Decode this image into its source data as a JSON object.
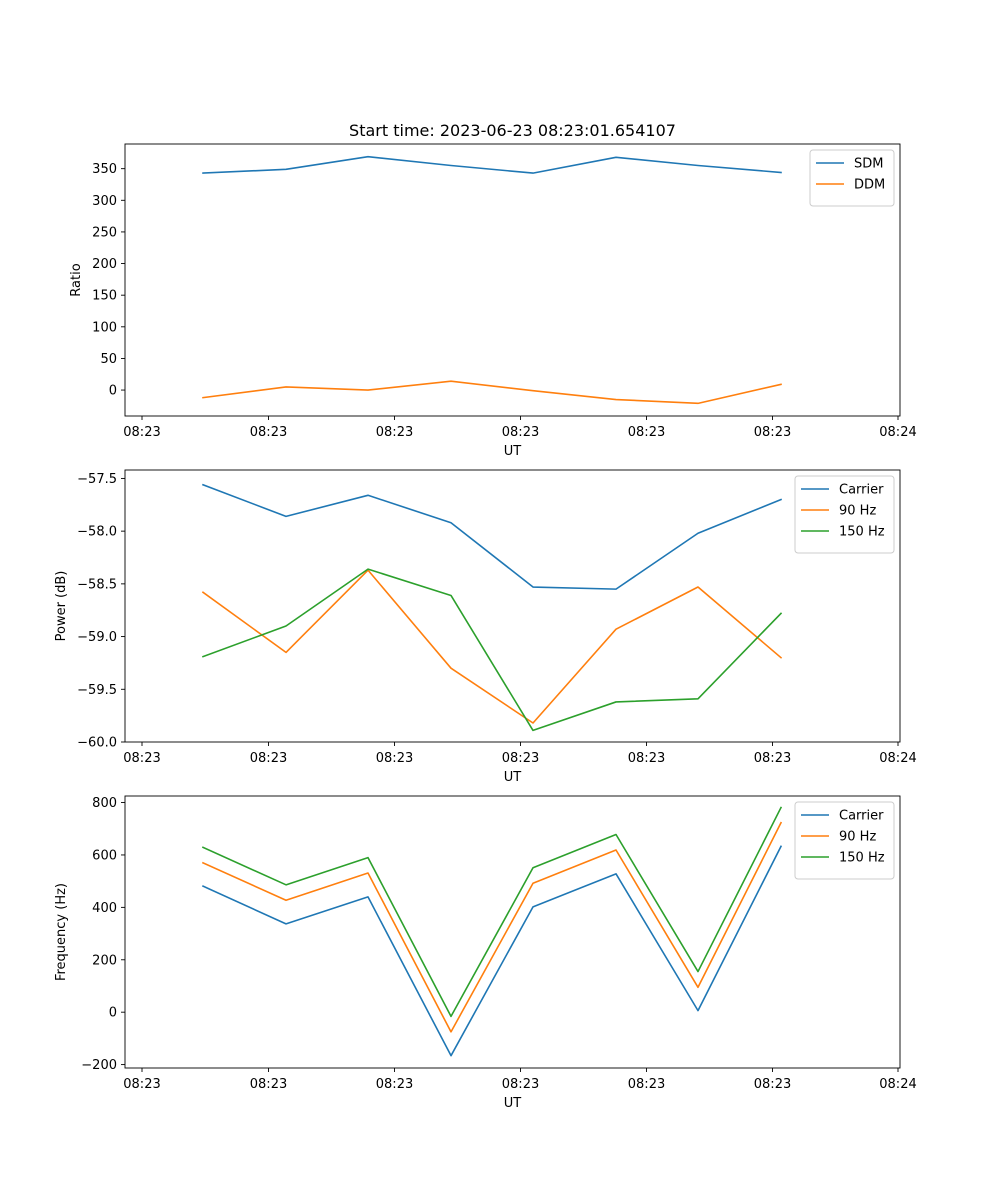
{
  "title": "Start time: 2023-06-23 08:23:01.654107",
  "chart_data": [
    {
      "type": "line",
      "xlabel": "UT",
      "ylabel": "Ratio",
      "x_tick_labels": [
        "08:23",
        "08:23",
        "08:23",
        "08:23",
        "08:23",
        "08:23",
        "08:24"
      ],
      "y_ticks": [
        0,
        50,
        100,
        150,
        200,
        250,
        300,
        350
      ],
      "ylim": [
        -41,
        389
      ],
      "legend_position": "upper-right",
      "series": [
        {
          "name": "SDM",
          "color": "#1f77b4",
          "values": [
            343,
            349,
            369,
            355,
            343,
            368,
            355,
            344
          ]
        },
        {
          "name": "DDM",
          "color": "#ff7f0e",
          "values": [
            -12,
            5,
            0,
            14,
            -1,
            -15,
            -21,
            9
          ]
        }
      ]
    },
    {
      "type": "line",
      "xlabel": "UT",
      "ylabel": "Power (dB)",
      "x_tick_labels": [
        "08:23",
        "08:23",
        "08:23",
        "08:23",
        "08:23",
        "08:23",
        "08:24"
      ],
      "y_ticks": [
        -60.0,
        -59.5,
        -59.0,
        -58.5,
        -58.0,
        -57.5
      ],
      "y_tick_labels": [
        "−60.0",
        "−59.5",
        "−59.0",
        "−58.5",
        "−58.0",
        "−57.5"
      ],
      "ylim": [
        -60.0,
        -57.42
      ],
      "legend_position": "upper-right",
      "series": [
        {
          "name": "Carrier",
          "color": "#1f77b4",
          "values": [
            -57.56,
            -57.86,
            -57.66,
            -57.92,
            -58.53,
            -58.55,
            -58.02,
            -57.7
          ]
        },
        {
          "name": "90 Hz",
          "color": "#ff7f0e",
          "values": [
            -58.58,
            -59.15,
            -58.37,
            -59.3,
            -59.82,
            -58.93,
            -58.53,
            -59.2
          ]
        },
        {
          "name": "150 Hz",
          "color": "#2ca02c",
          "values": [
            -59.19,
            -58.9,
            -58.36,
            -58.61,
            -59.89,
            -59.62,
            -59.59,
            -58.78
          ]
        }
      ]
    },
    {
      "type": "line",
      "xlabel": "UT",
      "ylabel": "Frequency (Hz)",
      "x_tick_labels": [
        "08:23",
        "08:23",
        "08:23",
        "08:23",
        "08:23",
        "08:23",
        "08:24"
      ],
      "y_ticks": [
        -200,
        0,
        200,
        400,
        600,
        800
      ],
      "y_tick_labels": [
        "−200",
        "0",
        "200",
        "400",
        "600",
        "800"
      ],
      "ylim": [
        -213,
        825
      ],
      "legend_position": "upper-right",
      "series": [
        {
          "name": "Carrier",
          "color": "#1f77b4",
          "values": [
            481,
            337,
            440,
            -166,
            402,
            528,
            6,
            633
          ]
        },
        {
          "name": "90 Hz",
          "color": "#ff7f0e",
          "values": [
            570,
            427,
            531,
            -75,
            492,
            619,
            95,
            723
          ]
        },
        {
          "name": "150 Hz",
          "color": "#2ca02c",
          "values": [
            629,
            486,
            590,
            -16,
            551,
            678,
            155,
            781
          ]
        }
      ]
    }
  ]
}
